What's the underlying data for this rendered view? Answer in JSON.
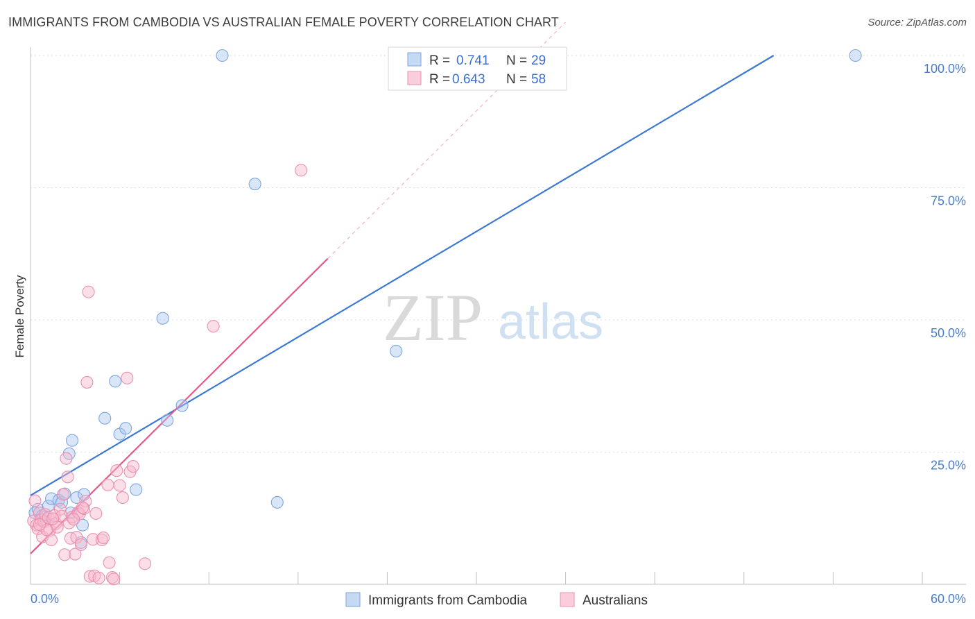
{
  "title": "IMMIGRANTS FROM CAMBODIA VS AUSTRALIAN FEMALE POVERTY CORRELATION CHART",
  "source": "Source: ZipAtlas.com",
  "watermark": {
    "zip": "ZIP",
    "atlas": "atlas"
  },
  "colors": {
    "blue": "#3a78d4",
    "blue_fill": "#a9c7ef",
    "pink": "#e8578a",
    "pink_fill": "#f6b8cc",
    "grid": "#dddddd",
    "tick": "#4a7cc9"
  },
  "chart_data": {
    "type": "scatter",
    "title": "IMMIGRANTS FROM CAMBODIA VS AUSTRALIAN FEMALE POVERTY CORRELATION CHART",
    "xlabel": "",
    "ylabel": "Female Poverty",
    "xlim": [
      0,
      60
    ],
    "ylim": [
      0,
      100
    ],
    "x_tick_labels": {
      "min": "0.0%",
      "max": "60.0%"
    },
    "y_ticks": [
      25,
      50,
      75,
      100
    ],
    "y_tick_labels": [
      "25.0%",
      "50.0%",
      "75.0%",
      "100.0%"
    ],
    "legend_stats": [
      {
        "r_label": "R =",
        "r": "0.741",
        "n_label": "N =",
        "n": "29"
      },
      {
        "r_label": "R =",
        "r": "0.643",
        "n_label": "N =",
        "n": "58"
      }
    ],
    "series": [
      {
        "name": "Immigrants from Cambodia",
        "color": "#3a78d4",
        "points": [
          [
            0.3,
            13.5
          ],
          [
            0.5,
            14.2
          ],
          [
            0.8,
            13.0
          ],
          [
            1.0,
            12.8
          ],
          [
            1.2,
            14.8
          ],
          [
            1.4,
            16.2
          ],
          [
            1.9,
            15.9
          ],
          [
            2.1,
            15.5
          ],
          [
            2.3,
            17.1
          ],
          [
            2.6,
            24.7
          ],
          [
            2.7,
            13.5
          ],
          [
            2.8,
            27.2
          ],
          [
            3.1,
            16.4
          ],
          [
            3.4,
            7.9
          ],
          [
            3.5,
            11.2
          ],
          [
            3.6,
            17.0
          ],
          [
            5.0,
            31.4
          ],
          [
            5.7,
            38.4
          ],
          [
            6.0,
            28.4
          ],
          [
            6.4,
            29.5
          ],
          [
            7.1,
            17.9
          ],
          [
            8.9,
            50.3
          ],
          [
            9.2,
            31.0
          ],
          [
            10.2,
            33.8
          ],
          [
            12.9,
            100.0
          ],
          [
            15.1,
            75.7
          ],
          [
            16.6,
            15.5
          ],
          [
            24.6,
            44.1
          ],
          [
            55.5,
            100.0
          ]
        ],
        "trend": {
          "x": [
            0,
            50
          ],
          "y": [
            16.8,
            100.0
          ],
          "style": "solid"
        }
      },
      {
        "name": "Australians",
        "color": "#e8578a",
        "points": [
          [
            0.2,
            12.0
          ],
          [
            0.3,
            15.8
          ],
          [
            0.4,
            11.2
          ],
          [
            0.5,
            10.5
          ],
          [
            0.6,
            13.5
          ],
          [
            0.7,
            12.2
          ],
          [
            0.8,
            9.0
          ],
          [
            0.9,
            11.8
          ],
          [
            1.0,
            13.2
          ],
          [
            1.2,
            12.6
          ],
          [
            1.3,
            10.2
          ],
          [
            1.4,
            8.4
          ],
          [
            1.6,
            13.0
          ],
          [
            1.7,
            11.5
          ],
          [
            1.8,
            10.8
          ],
          [
            2.0,
            14.2
          ],
          [
            2.1,
            12.9
          ],
          [
            2.2,
            17.0
          ],
          [
            2.3,
            5.6
          ],
          [
            2.4,
            23.8
          ],
          [
            2.5,
            20.3
          ],
          [
            2.6,
            11.6
          ],
          [
            2.7,
            8.7
          ],
          [
            2.8,
            12.7
          ],
          [
            3.0,
            5.7
          ],
          [
            3.1,
            8.9
          ],
          [
            3.2,
            13.6
          ],
          [
            3.3,
            13.3
          ],
          [
            3.4,
            7.5
          ],
          [
            3.6,
            14.3
          ],
          [
            3.7,
            15.7
          ],
          [
            3.8,
            38.2
          ],
          [
            3.9,
            55.3
          ],
          [
            4.0,
            1.5
          ],
          [
            4.2,
            8.5
          ],
          [
            4.3,
            1.6
          ],
          [
            4.4,
            13.4
          ],
          [
            4.6,
            1.2
          ],
          [
            4.8,
            8.4
          ],
          [
            4.9,
            8.8
          ],
          [
            5.2,
            18.8
          ],
          [
            5.3,
            4.1
          ],
          [
            5.5,
            1.3
          ],
          [
            5.6,
            1.0
          ],
          [
            5.8,
            21.5
          ],
          [
            6.0,
            18.7
          ],
          [
            6.2,
            16.4
          ],
          [
            6.5,
            39.0
          ],
          [
            6.7,
            21.3
          ],
          [
            6.9,
            22.3
          ],
          [
            7.7,
            3.9
          ],
          [
            12.3,
            48.8
          ],
          [
            18.2,
            78.3
          ],
          [
            1.1,
            10.3
          ],
          [
            1.5,
            12.4
          ],
          [
            0.6,
            11.3
          ],
          [
            2.9,
            12.3
          ],
          [
            3.5,
            14.5
          ]
        ],
        "trend": {
          "x": [
            0,
            20.0
          ],
          "y": [
            5.8,
            61.6
          ],
          "style": "solid"
        },
        "trend_ext": {
          "x": [
            20.0,
            36.0
          ],
          "y": [
            61.6,
            106.3
          ],
          "style": "dashed"
        }
      }
    ]
  },
  "legend": {
    "items": [
      "Immigrants from Cambodia",
      "Australians"
    ]
  }
}
